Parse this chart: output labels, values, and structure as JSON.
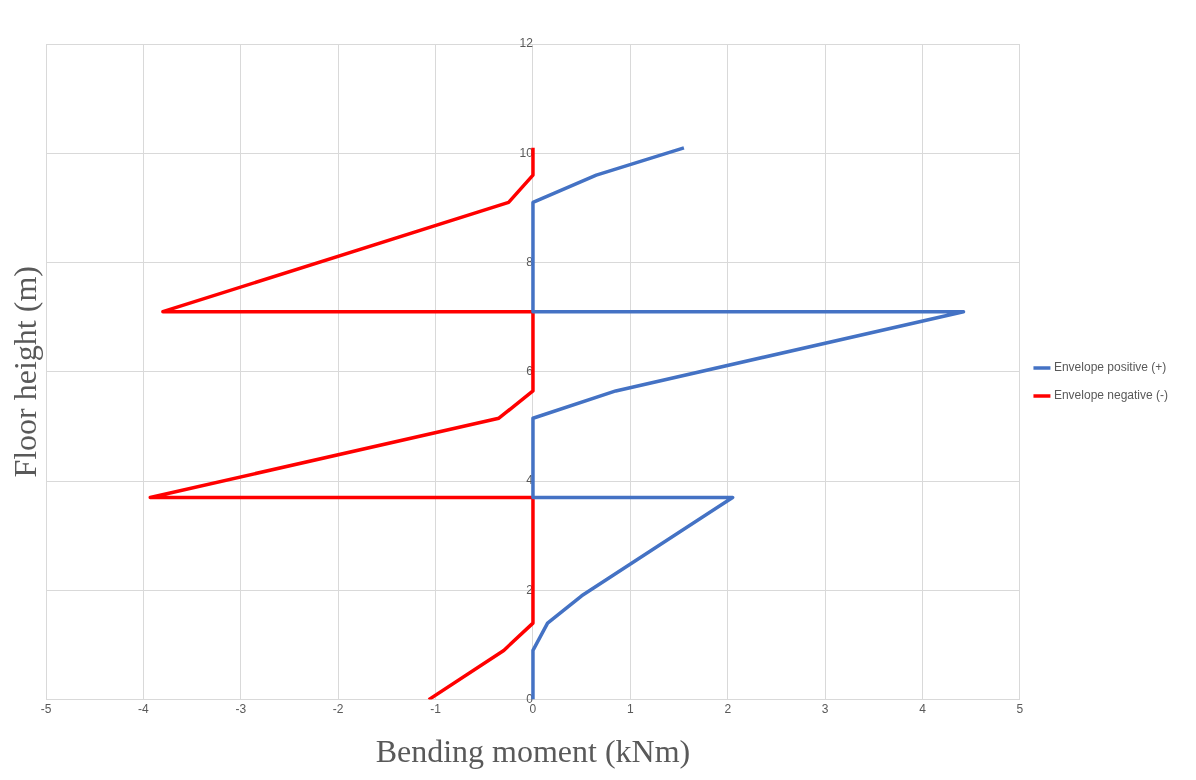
{
  "chart_data": {
    "type": "line",
    "xlabel": "Bending moment (kNm)",
    "ylabel": "Floor height (m)",
    "xlim": [
      -5,
      5
    ],
    "xticks": [
      -5,
      -4,
      -3,
      -2,
      -1,
      0,
      1,
      2,
      3,
      4,
      5
    ],
    "ylim": [
      0,
      12
    ],
    "yticks": [
      0,
      2,
      4,
      6,
      8,
      10,
      12
    ],
    "grid": true,
    "legend": "right",
    "marker": "none",
    "line_style": "solid",
    "series": [
      {
        "name": "Envelope positive (+)",
        "color": "#4472c4",
        "x": [
          0,
          0,
          0.15,
          0.5,
          2.05,
          0,
          0,
          0.85,
          4.42,
          0,
          0,
          0.65,
          1.55
        ],
        "values": [
          0,
          0.9,
          1.4,
          1.9,
          3.7,
          3.7,
          5.15,
          5.65,
          7.1,
          7.1,
          9.1,
          9.6,
          10.1
        ]
      },
      {
        "name": "Envelope negative (-)",
        "color": "#ff0000",
        "x": [
          -1.07,
          -0.3,
          0,
          0,
          -3.93,
          -0.35,
          0,
          0,
          -3.8,
          -0.25,
          0,
          0
        ],
        "values": [
          0,
          0.9,
          1.4,
          3.7,
          3.7,
          5.15,
          5.65,
          7.1,
          7.1,
          9.1,
          9.6,
          10.1
        ]
      }
    ]
  }
}
